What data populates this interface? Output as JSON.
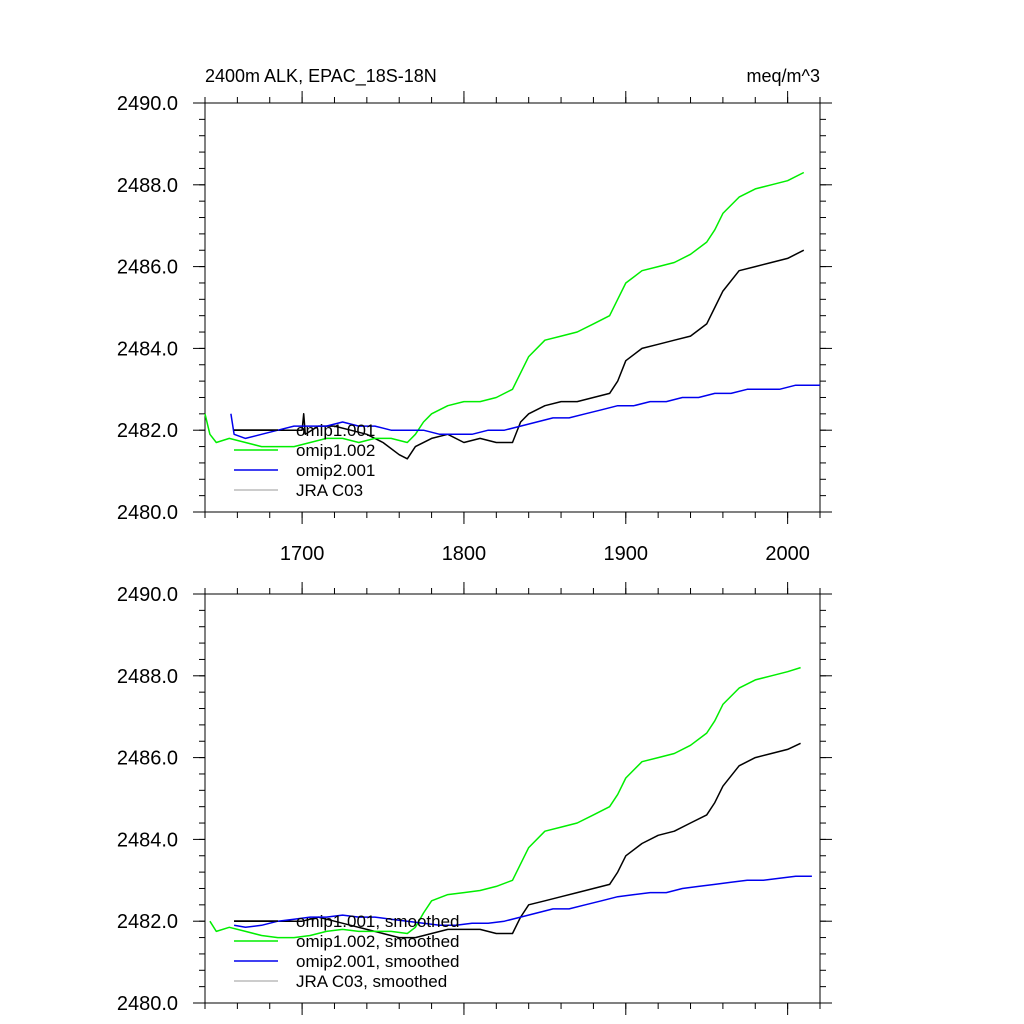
{
  "chart_data": [
    {
      "type": "line",
      "title_left": "2400m ALK, EPAC_18S-18N",
      "title_right": "meq/m^3",
      "xlabel": "",
      "ylabel": "",
      "xlim": [
        1640,
        2020
      ],
      "ylim": [
        2480,
        2490
      ],
      "yticks": [
        "2480.0",
        "2482.0",
        "2484.0",
        "2486.0",
        "2488.0",
        "2490.0"
      ],
      "xticks": [
        "1700",
        "1800",
        "1900",
        "2000"
      ],
      "grid": false,
      "legend_position": "bottom-left",
      "series": [
        {
          "name": "omip1.001",
          "color": "#000000",
          "points": [
            [
              1658,
              2482.0
            ],
            [
              1670,
              2482.0
            ],
            [
              1680,
              2482.0
            ],
            [
              1690,
              2482.0
            ],
            [
              1700,
              2482.0
            ],
            [
              1701,
              2482.4
            ],
            [
              1702,
              2481.9
            ],
            [
              1710,
              2482.1
            ],
            [
              1720,
              2482.1
            ],
            [
              1730,
              2482.0
            ],
            [
              1740,
              2481.9
            ],
            [
              1750,
              2481.7
            ],
            [
              1760,
              2481.4
            ],
            [
              1765,
              2481.3
            ],
            [
              1770,
              2481.6
            ],
            [
              1780,
              2481.8
            ],
            [
              1790,
              2481.9
            ],
            [
              1800,
              2481.7
            ],
            [
              1810,
              2481.8
            ],
            [
              1820,
              2481.7
            ],
            [
              1830,
              2481.7
            ],
            [
              1835,
              2482.2
            ],
            [
              1840,
              2482.4
            ],
            [
              1850,
              2482.6
            ],
            [
              1860,
              2482.7
            ],
            [
              1870,
              2482.7
            ],
            [
              1880,
              2482.8
            ],
            [
              1890,
              2482.9
            ],
            [
              1895,
              2483.2
            ],
            [
              1900,
              2483.7
            ],
            [
              1910,
              2484.0
            ],
            [
              1920,
              2484.1
            ],
            [
              1930,
              2484.2
            ],
            [
              1940,
              2484.3
            ],
            [
              1950,
              2484.6
            ],
            [
              1955,
              2485.0
            ],
            [
              1960,
              2485.4
            ],
            [
              1970,
              2485.9
            ],
            [
              1980,
              2486.0
            ],
            [
              1990,
              2486.1
            ],
            [
              2000,
              2486.2
            ],
            [
              2010,
              2486.4
            ]
          ]
        },
        {
          "name": "omip1.002",
          "color": "#00ee00",
          "points": [
            [
              1640,
              2482.4
            ],
            [
              1643,
              2481.9
            ],
            [
              1647,
              2481.7
            ],
            [
              1655,
              2481.8
            ],
            [
              1665,
              2481.7
            ],
            [
              1675,
              2481.6
            ],
            [
              1685,
              2481.6
            ],
            [
              1695,
              2481.6
            ],
            [
              1705,
              2481.7
            ],
            [
              1715,
              2481.8
            ],
            [
              1725,
              2481.8
            ],
            [
              1735,
              2481.7
            ],
            [
              1745,
              2481.8
            ],
            [
              1755,
              2481.8
            ],
            [
              1765,
              2481.7
            ],
            [
              1770,
              2481.9
            ],
            [
              1775,
              2482.2
            ],
            [
              1780,
              2482.4
            ],
            [
              1790,
              2482.6
            ],
            [
              1800,
              2482.7
            ],
            [
              1810,
              2482.7
            ],
            [
              1820,
              2482.8
            ],
            [
              1830,
              2483.0
            ],
            [
              1835,
              2483.4
            ],
            [
              1840,
              2483.8
            ],
            [
              1850,
              2484.2
            ],
            [
              1860,
              2484.3
            ],
            [
              1870,
              2484.4
            ],
            [
              1880,
              2484.6
            ],
            [
              1890,
              2484.8
            ],
            [
              1895,
              2485.2
            ],
            [
              1900,
              2485.6
            ],
            [
              1910,
              2485.9
            ],
            [
              1920,
              2486.0
            ],
            [
              1930,
              2486.1
            ],
            [
              1940,
              2486.3
            ],
            [
              1950,
              2486.6
            ],
            [
              1955,
              2486.9
            ],
            [
              1960,
              2487.3
            ],
            [
              1970,
              2487.7
            ],
            [
              1980,
              2487.9
            ],
            [
              1990,
              2488.0
            ],
            [
              2000,
              2488.1
            ],
            [
              2010,
              2488.3
            ]
          ]
        },
        {
          "name": "omip2.001",
          "color": "#0000ee",
          "points": [
            [
              1656,
              2482.4
            ],
            [
              1658,
              2481.9
            ],
            [
              1665,
              2481.8
            ],
            [
              1675,
              2481.9
            ],
            [
              1685,
              2482.0
            ],
            [
              1695,
              2482.1
            ],
            [
              1705,
              2482.1
            ],
            [
              1715,
              2482.1
            ],
            [
              1725,
              2482.2
            ],
            [
              1735,
              2482.1
            ],
            [
              1745,
              2482.1
            ],
            [
              1755,
              2482.0
            ],
            [
              1765,
              2482.0
            ],
            [
              1775,
              2482.0
            ],
            [
              1785,
              2481.9
            ],
            [
              1795,
              2481.9
            ],
            [
              1805,
              2481.9
            ],
            [
              1815,
              2482.0
            ],
            [
              1825,
              2482.0
            ],
            [
              1835,
              2482.1
            ],
            [
              1845,
              2482.2
            ],
            [
              1855,
              2482.3
            ],
            [
              1865,
              2482.3
            ],
            [
              1875,
              2482.4
            ],
            [
              1885,
              2482.5
            ],
            [
              1895,
              2482.6
            ],
            [
              1905,
              2482.6
            ],
            [
              1915,
              2482.7
            ],
            [
              1925,
              2482.7
            ],
            [
              1935,
              2482.8
            ],
            [
              1945,
              2482.8
            ],
            [
              1955,
              2482.9
            ],
            [
              1965,
              2482.9
            ],
            [
              1975,
              2483.0
            ],
            [
              1985,
              2483.0
            ],
            [
              1995,
              2483.0
            ],
            [
              2005,
              2483.1
            ],
            [
              2015,
              2483.1
            ],
            [
              2020,
              2483.1
            ]
          ]
        },
        {
          "name": "JRA C03",
          "color": "#bbbbbb",
          "points": []
        }
      ]
    },
    {
      "type": "line",
      "title_left": "",
      "title_right": "",
      "xlabel": "",
      "ylabel": "",
      "xlim": [
        1640,
        2020
      ],
      "ylim": [
        2480,
        2490
      ],
      "yticks": [
        "2480.0",
        "2482.0",
        "2484.0",
        "2486.0",
        "2488.0",
        "2490.0"
      ],
      "xticks": [],
      "grid": false,
      "legend_position": "bottom-left",
      "series": [
        {
          "name": "omip1.001, smoothed",
          "color": "#000000",
          "points": [
            [
              1658,
              2482.0
            ],
            [
              1670,
              2482.0
            ],
            [
              1680,
              2482.0
            ],
            [
              1690,
              2482.0
            ],
            [
              1700,
              2482.0
            ],
            [
              1710,
              2482.1
            ],
            [
              1720,
              2482.0
            ],
            [
              1730,
              2481.9
            ],
            [
              1740,
              2481.8
            ],
            [
              1750,
              2481.7
            ],
            [
              1760,
              2481.6
            ],
            [
              1770,
              2481.6
            ],
            [
              1780,
              2481.7
            ],
            [
              1790,
              2481.8
            ],
            [
              1800,
              2481.8
            ],
            [
              1810,
              2481.8
            ],
            [
              1820,
              2481.7
            ],
            [
              1830,
              2481.7
            ],
            [
              1835,
              2482.1
            ],
            [
              1840,
              2482.4
            ],
            [
              1850,
              2482.5
            ],
            [
              1860,
              2482.6
            ],
            [
              1870,
              2482.7
            ],
            [
              1880,
              2482.8
            ],
            [
              1890,
              2482.9
            ],
            [
              1895,
              2483.2
            ],
            [
              1900,
              2483.6
            ],
            [
              1910,
              2483.9
            ],
            [
              1920,
              2484.1
            ],
            [
              1930,
              2484.2
            ],
            [
              1940,
              2484.4
            ],
            [
              1950,
              2484.6
            ],
            [
              1955,
              2484.9
            ],
            [
              1960,
              2485.3
            ],
            [
              1970,
              2485.8
            ],
            [
              1980,
              2486.0
            ],
            [
              1990,
              2486.1
            ],
            [
              2000,
              2486.2
            ],
            [
              2008,
              2486.35
            ]
          ]
        },
        {
          "name": "omip1.002, smoothed",
          "color": "#00ee00",
          "points": [
            [
              1643,
              2482.0
            ],
            [
              1647,
              2481.75
            ],
            [
              1655,
              2481.85
            ],
            [
              1665,
              2481.75
            ],
            [
              1675,
              2481.65
            ],
            [
              1685,
              2481.6
            ],
            [
              1695,
              2481.6
            ],
            [
              1705,
              2481.65
            ],
            [
              1715,
              2481.75
            ],
            [
              1725,
              2481.8
            ],
            [
              1735,
              2481.75
            ],
            [
              1745,
              2481.75
            ],
            [
              1755,
              2481.75
            ],
            [
              1765,
              2481.7
            ],
            [
              1770,
              2481.85
            ],
            [
              1775,
              2482.2
            ],
            [
              1780,
              2482.5
            ],
            [
              1790,
              2482.65
            ],
            [
              1800,
              2482.7
            ],
            [
              1810,
              2482.75
            ],
            [
              1820,
              2482.85
            ],
            [
              1830,
              2483.0
            ],
            [
              1835,
              2483.4
            ],
            [
              1840,
              2483.8
            ],
            [
              1850,
              2484.2
            ],
            [
              1860,
              2484.3
            ],
            [
              1870,
              2484.4
            ],
            [
              1880,
              2484.6
            ],
            [
              1890,
              2484.8
            ],
            [
              1895,
              2485.1
            ],
            [
              1900,
              2485.5
            ],
            [
              1910,
              2485.9
            ],
            [
              1920,
              2486.0
            ],
            [
              1930,
              2486.1
            ],
            [
              1940,
              2486.3
            ],
            [
              1950,
              2486.6
            ],
            [
              1955,
              2486.9
            ],
            [
              1960,
              2487.3
            ],
            [
              1970,
              2487.7
            ],
            [
              1980,
              2487.9
            ],
            [
              1990,
              2488.0
            ],
            [
              2000,
              2488.1
            ],
            [
              2008,
              2488.2
            ]
          ]
        },
        {
          "name": "omip2.001, smoothed",
          "color": "#0000ee",
          "points": [
            [
              1658,
              2481.9
            ],
            [
              1665,
              2481.85
            ],
            [
              1675,
              2481.9
            ],
            [
              1685,
              2482.0
            ],
            [
              1695,
              2482.05
            ],
            [
              1705,
              2482.1
            ],
            [
              1715,
              2482.1
            ],
            [
              1725,
              2482.15
            ],
            [
              1735,
              2482.1
            ],
            [
              1745,
              2482.1
            ],
            [
              1755,
              2482.05
            ],
            [
              1765,
              2482.0
            ],
            [
              1775,
              2481.95
            ],
            [
              1785,
              2481.9
            ],
            [
              1795,
              2481.9
            ],
            [
              1805,
              2481.95
            ],
            [
              1815,
              2481.95
            ],
            [
              1825,
              2482.0
            ],
            [
              1835,
              2482.1
            ],
            [
              1845,
              2482.2
            ],
            [
              1855,
              2482.3
            ],
            [
              1865,
              2482.3
            ],
            [
              1875,
              2482.4
            ],
            [
              1885,
              2482.5
            ],
            [
              1895,
              2482.6
            ],
            [
              1905,
              2482.65
            ],
            [
              1915,
              2482.7
            ],
            [
              1925,
              2482.7
            ],
            [
              1935,
              2482.8
            ],
            [
              1945,
              2482.85
            ],
            [
              1955,
              2482.9
            ],
            [
              1965,
              2482.95
            ],
            [
              1975,
              2483.0
            ],
            [
              1985,
              2483.0
            ],
            [
              1995,
              2483.05
            ],
            [
              2005,
              2483.1
            ],
            [
              2015,
              2483.1
            ]
          ]
        },
        {
          "name": "JRA C03, smoothed",
          "color": "#bbbbbb",
          "points": []
        }
      ]
    }
  ]
}
